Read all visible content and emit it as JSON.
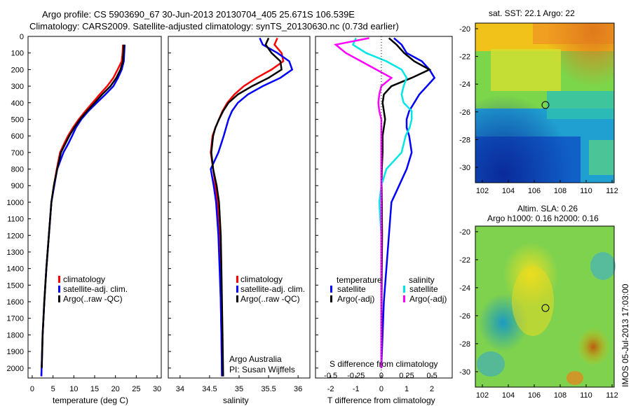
{
  "header": {
    "line1": "Argo profile: CS 5903690_67 30-Jun-2013 20130704_405 25.671S 106.539E",
    "line2": "Climatology: CARS2009. Satellite-adjusted climatology: synTS_20130630.nc (0.73d earlier)"
  },
  "depth_ticks": [
    "0",
    "100",
    "200",
    "300",
    "400",
    "500",
    "600",
    "700",
    "800",
    "900",
    "1000",
    "1100",
    "1200",
    "1300",
    "1400",
    "1500",
    "1600",
    "1700",
    "1800",
    "1900",
    "2000"
  ],
  "legend": {
    "climatology": "climatology",
    "satellite_adj": "satellite-adj. clim.",
    "argo_raw": "Argo(..raw -QC)",
    "temperature": "temperature",
    "salinity": "salinity",
    "satellite": "satellite",
    "argo_adj": "Argo(-adj)"
  },
  "colors": {
    "climatology": "#ff0000",
    "satellite": "#0000ff",
    "argo": "#000000",
    "sal_sat": "#00e5e5",
    "sal_argo": "#ff00ff"
  },
  "credit": {
    "org": "Argo Australia",
    "pi": "PI: Susan Wijffels"
  },
  "maps": {
    "sst_title": "sat. SST: 22.1  Argo: 22",
    "sla_title1": "Altim. SLA: 0.26",
    "sla_title2": "Argo h1000: 0.16 h2000: 0.16",
    "y_ticks": [
      "-20",
      "-22",
      "-24",
      "-26",
      "-28",
      "-30"
    ],
    "x_ticks": [
      "102",
      "104",
      "106",
      "108",
      "110",
      "112"
    ],
    "stamp": "IMOS 05-Jul-2013 17:03:00"
  },
  "chart_data": [
    {
      "type": "line",
      "xlabel": "temperature (deg C)",
      "ylabel": "",
      "xlim": [
        -1,
        31
      ],
      "ylim": [
        2060,
        0
      ],
      "x_ticks": [
        "0",
        "5",
        "10",
        "15",
        "20",
        "25",
        "30"
      ],
      "series": [
        {
          "name": "climatology",
          "x": [
            21.8,
            21.7,
            21.5,
            20.5,
            19.5,
            18.0,
            16.2,
            14.5,
            12.8,
            11.2,
            9.8,
            8.6,
            7.6,
            6.7,
            5.9,
            5.2,
            4.6,
            4.0,
            3.4,
            2.9,
            2.5,
            2.2
          ],
          "y": [
            50,
            100,
            150,
            200,
            250,
            300,
            350,
            400,
            450,
            500,
            550,
            600,
            650,
            700,
            800,
            900,
            1000,
            1200,
            1400,
            1600,
            1800,
            2050
          ]
        },
        {
          "name": "satellite-adj. clim.",
          "x": [
            22.2,
            22.1,
            22.0,
            21.5,
            20.6,
            19.5,
            17.6,
            15.5,
            13.5,
            11.8,
            10.5,
            9.6,
            8.6,
            7.5,
            6.0,
            5.3,
            4.6,
            4.0,
            3.4,
            2.9,
            2.5,
            2.2
          ],
          "y": [
            50,
            100,
            150,
            200,
            250,
            300,
            350,
            400,
            450,
            500,
            550,
            600,
            650,
            700,
            800,
            900,
            1000,
            1200,
            1400,
            1600,
            1800,
            2050
          ]
        },
        {
          "name": "Argo(..raw -QC)",
          "x": [
            22.0,
            21.9,
            21.8,
            21.2,
            20.2,
            18.8,
            16.8,
            15.0,
            13.2,
            11.5,
            10.1,
            8.9,
            7.9,
            6.9,
            6.0,
            5.2,
            4.6,
            4.0,
            3.4,
            2.9,
            2.5,
            2.3
          ],
          "y": [
            50,
            100,
            150,
            200,
            250,
            300,
            350,
            400,
            450,
            500,
            550,
            600,
            650,
            700,
            800,
            900,
            1000,
            1200,
            1400,
            1600,
            1800,
            2000
          ]
        }
      ]
    },
    {
      "type": "line",
      "xlabel": "salinity",
      "ylabel": "",
      "xlim": [
        33.8,
        36.2
      ],
      "ylim": [
        2060,
        0
      ],
      "x_ticks": [
        "34",
        "34.5",
        "35",
        "35.5",
        "36"
      ],
      "series": [
        {
          "name": "climatology",
          "x": [
            35.65,
            35.6,
            35.72,
            35.75,
            35.55,
            35.3,
            35.08,
            34.92,
            34.8,
            34.72,
            34.66,
            34.6,
            34.55,
            34.52,
            34.56,
            34.6,
            34.63,
            34.66,
            34.68,
            34.69,
            34.7,
            34.71
          ],
          "y": [
            10,
            50,
            100,
            150,
            200,
            250,
            300,
            350,
            400,
            450,
            500,
            550,
            600,
            700,
            800,
            900,
            1000,
            1200,
            1400,
            1600,
            1800,
            2050
          ]
        },
        {
          "name": "satellite-adj. clim.",
          "x": [
            35.35,
            35.4,
            35.65,
            35.85,
            35.9,
            35.7,
            35.4,
            35.15,
            34.98,
            34.88,
            34.82,
            34.78,
            34.74,
            34.65,
            34.52,
            34.57,
            34.61,
            34.65,
            34.67,
            34.69,
            34.7,
            34.71
          ],
          "y": [
            10,
            50,
            100,
            150,
            200,
            250,
            300,
            350,
            400,
            450,
            500,
            550,
            600,
            700,
            800,
            900,
            1000,
            1200,
            1400,
            1600,
            1800,
            2050
          ]
        },
        {
          "name": "Argo(..raw -QC)",
          "x": [
            35.5,
            35.45,
            35.55,
            35.7,
            35.72,
            35.5,
            35.22,
            34.98,
            34.82,
            34.73,
            34.66,
            34.6,
            34.56,
            34.53,
            34.56,
            34.62,
            34.66,
            34.69,
            34.7,
            34.71,
            34.72,
            34.73
          ],
          "y": [
            10,
            50,
            100,
            150,
            200,
            250,
            300,
            350,
            400,
            450,
            500,
            550,
            600,
            700,
            800,
            900,
            1000,
            1200,
            1400,
            1600,
            1800,
            2050
          ]
        }
      ]
    },
    {
      "type": "line",
      "xlabel": "T difference from climatology",
      "x2label": "S difference from climatology",
      "xlim": [
        -2.6,
        2.8
      ],
      "ylim": [
        2060,
        0
      ],
      "x_ticks": [
        "-2",
        "-1",
        "0",
        "1",
        "2"
      ],
      "x2_ticks": [
        "-0.5",
        "-0.25",
        "0",
        "0.25",
        "0.5"
      ],
      "series": [
        {
          "name": "temperature satellite",
          "x": [
            0.5,
            0.8,
            1.0,
            1.6,
            1.9,
            2.1,
            1.8,
            1.5,
            1.3,
            1.1,
            1.0,
            1.0,
            1.1,
            1.2,
            1.0,
            0.7,
            0.4,
            0.3,
            0.2,
            0.1,
            0.05,
            0.0
          ],
          "y": [
            10,
            50,
            100,
            150,
            200,
            250,
            300,
            350,
            400,
            450,
            500,
            550,
            600,
            700,
            800,
            900,
            1000,
            1200,
            1400,
            1600,
            1800,
            2000
          ]
        },
        {
          "name": "temperature Argo(-adj)",
          "x": [
            0.3,
            0.6,
            0.9,
            1.3,
            1.9,
            1.2,
            0.4,
            0.1,
            0.05,
            0.1,
            0.15,
            0.1,
            0.05,
            0.05,
            0.02,
            0.01,
            0.02,
            0.03,
            0.02,
            0.01,
            0.01,
            0.0
          ],
          "y": [
            10,
            50,
            100,
            150,
            200,
            250,
            300,
            350,
            400,
            450,
            500,
            550,
            600,
            700,
            800,
            900,
            1000,
            1200,
            1400,
            1600,
            1800,
            2000
          ]
        },
        {
          "name": "salinity satellite",
          "x": [
            -0.25,
            -0.28,
            -0.15,
            0.05,
            0.2,
            0.25,
            0.22,
            0.2,
            0.22,
            0.3,
            0.3,
            0.28,
            0.24,
            0.2,
            0.05,
            0.0,
            -0.02,
            0.0,
            0.0,
            0.0,
            0.0,
            0.0
          ],
          "y": [
            10,
            50,
            100,
            150,
            200,
            250,
            300,
            350,
            400,
            450,
            500,
            550,
            600,
            700,
            800,
            900,
            1000,
            1200,
            1400,
            1600,
            1800,
            2000
          ]
        },
        {
          "name": "salinity Argo(-adj)",
          "x": [
            -0.12,
            -0.45,
            -0.35,
            -0.2,
            -0.05,
            0.1,
            0.0,
            -0.02,
            -0.03,
            -0.02,
            0.0,
            0.0,
            0.0,
            0.0,
            0.0,
            0.0,
            0.0,
            0.0,
            0.0,
            0.0,
            0.0,
            0.0
          ],
          "y": [
            10,
            50,
            100,
            150,
            200,
            250,
            300,
            350,
            400,
            450,
            500,
            550,
            600,
            700,
            800,
            900,
            1000,
            1200,
            1400,
            1600,
            1800,
            2000
          ]
        }
      ]
    }
  ]
}
